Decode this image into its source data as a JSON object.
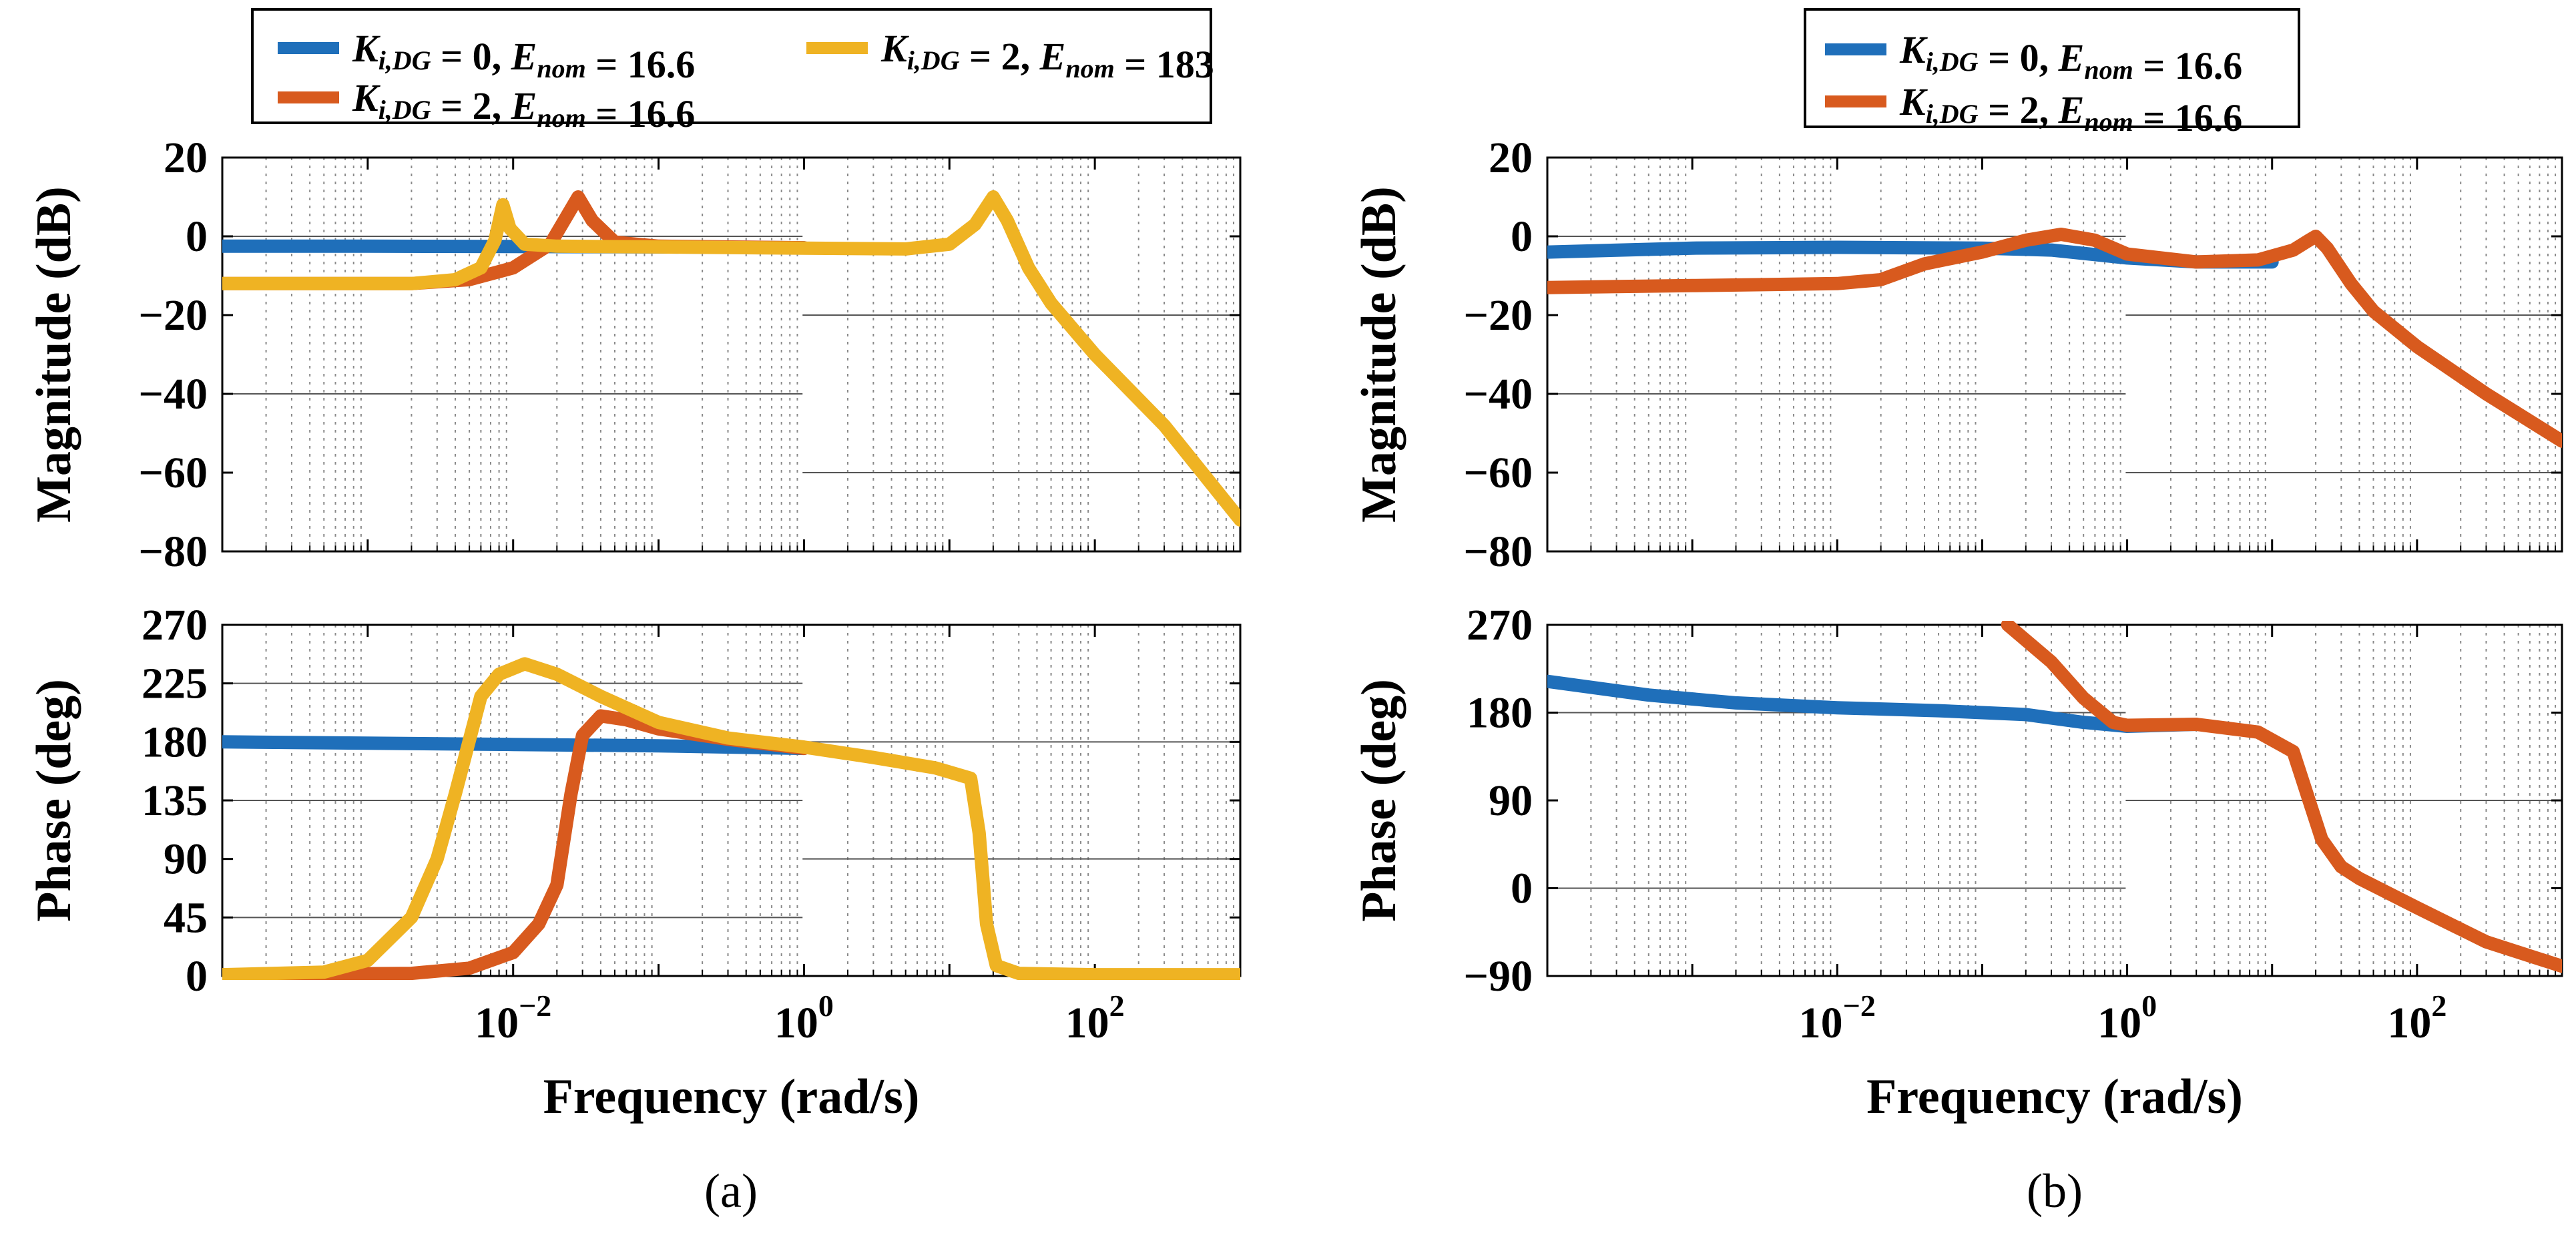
{
  "chart_data": [
    {
      "type": "line",
      "panel": "a",
      "panel_label": "(a)",
      "xscale": "log",
      "xlim": [
        0.0001,
        1000
      ],
      "xlabel": "Frequency (rad/s)",
      "xticks": [
        {
          "value": 0.01,
          "base": "10",
          "exp": "−2"
        },
        {
          "value": 1,
          "base": "10",
          "exp": "0"
        },
        {
          "value": 100,
          "base": "10",
          "exp": "2"
        }
      ],
      "legend": {
        "position": "top",
        "entries": [
          {
            "name": "K_i,DG = 0, E_nom = 16.6",
            "ki": "0",
            "enom": "16.6",
            "color": "#1f6fba"
          },
          {
            "name": "K_i,DG = 2, E_nom = 183",
            "ki": "2",
            "enom": "183",
            "color": "#efb323"
          },
          {
            "name": "K_i,DG = 2, E_nom = 16.6",
            "ki": "2",
            "enom": "16.6",
            "color": "#d85a1e"
          }
        ]
      },
      "magnitude": {
        "ylabel": "Magnitude (dB)",
        "ylim": [
          -80,
          20
        ],
        "yticks": [
          "20",
          "0",
          "−20",
          "−40",
          "−60",
          "−80"
        ],
        "series": [
          {
            "name": "K_i,DG = 0, E_nom = 16.6",
            "color": "#1f6fba",
            "points": [
              [
                0.0001,
                -2.5
              ],
              [
                0.001,
                -2.5
              ],
              [
                0.01,
                -2.6
              ],
              [
                0.1,
                -2.7
              ],
              [
                1,
                -2.9
              ]
            ]
          },
          {
            "name": "K_i,DG = 2, E_nom = 16.6",
            "color": "#d85a1e",
            "points": [
              [
                0.0001,
                -12
              ],
              [
                0.002,
                -12
              ],
              [
                0.005,
                -11
              ],
              [
                0.01,
                -8
              ],
              [
                0.018,
                -2
              ],
              [
                0.028,
                10
              ],
              [
                0.035,
                4
              ],
              [
                0.05,
                -1.5
              ],
              [
                0.1,
                -2.5
              ],
              [
                1,
                -2.9
              ]
            ]
          },
          {
            "name": "K_i,DG = 2, E_nom = 183",
            "color": "#efb323",
            "points": [
              [
                0.0001,
                -12
              ],
              [
                0.002,
                -12
              ],
              [
                0.004,
                -11
              ],
              [
                0.006,
                -8
              ],
              [
                0.0075,
                -1
              ],
              [
                0.0085,
                8
              ],
              [
                0.0095,
                2
              ],
              [
                0.012,
                -2
              ],
              [
                0.02,
                -2.5
              ],
              [
                0.1,
                -2.7
              ],
              [
                1,
                -3
              ],
              [
                5,
                -3.2
              ],
              [
                10,
                -2
              ],
              [
                15,
                3
              ],
              [
                20,
                10
              ],
              [
                25,
                4
              ],
              [
                35,
                -8
              ],
              [
                50,
                -17
              ],
              [
                100,
                -30
              ],
              [
                300,
                -48
              ],
              [
                1000,
                -72
              ]
            ]
          }
        ]
      },
      "phase": {
        "ylabel": "Phase (deg)",
        "ylim": [
          0,
          270
        ],
        "yticks": [
          "270",
          "225",
          "180",
          "135",
          "90",
          "45",
          "0"
        ],
        "series": [
          {
            "name": "K_i,DG = 0, E_nom = 16.6",
            "color": "#1f6fba",
            "points": [
              [
                0.0001,
                180
              ],
              [
                0.001,
                179
              ],
              [
                0.01,
                178
              ],
              [
                0.1,
                177
              ],
              [
                1,
                175
              ]
            ]
          },
          {
            "name": "K_i,DG = 2, E_nom = 16.6",
            "color": "#d85a1e",
            "points": [
              [
                0.0001,
                1
              ],
              [
                0.002,
                2
              ],
              [
                0.005,
                6
              ],
              [
                0.01,
                18
              ],
              [
                0.015,
                40
              ],
              [
                0.02,
                70
              ],
              [
                0.025,
                140
              ],
              [
                0.03,
                185
              ],
              [
                0.04,
                200
              ],
              [
                0.06,
                197
              ],
              [
                0.1,
                190
              ],
              [
                0.3,
                182
              ],
              [
                1,
                175
              ]
            ]
          },
          {
            "name": "K_i,DG = 2, E_nom = 183",
            "color": "#efb323",
            "points": [
              [
                0.0001,
                1
              ],
              [
                0.0005,
                3
              ],
              [
                0.001,
                12
              ],
              [
                0.002,
                45
              ],
              [
                0.003,
                90
              ],
              [
                0.004,
                140
              ],
              [
                0.006,
                215
              ],
              [
                0.008,
                232
              ],
              [
                0.012,
                240
              ],
              [
                0.02,
                232
              ],
              [
                0.04,
                215
              ],
              [
                0.1,
                195
              ],
              [
                0.3,
                183
              ],
              [
                1,
                176
              ],
              [
                3,
                168
              ],
              [
                8,
                160
              ],
              [
                14,
                152
              ],
              [
                16,
                110
              ],
              [
                18,
                40
              ],
              [
                21,
                8
              ],
              [
                30,
                2
              ],
              [
                100,
                1
              ],
              [
                1000,
                1
              ]
            ]
          }
        ]
      }
    },
    {
      "type": "line",
      "panel": "b",
      "panel_label": "(b)",
      "xscale": "log",
      "xlim": [
        0.0001,
        1000
      ],
      "xlabel": "Frequency (rad/s)",
      "xticks": [
        {
          "value": 0.01,
          "base": "10",
          "exp": "−2"
        },
        {
          "value": 1,
          "base": "10",
          "exp": "0"
        },
        {
          "value": 100,
          "base": "10",
          "exp": "2"
        }
      ],
      "legend": {
        "position": "top",
        "entries": [
          {
            "name": "K_i,DG = 0, E_nom = 16.6",
            "ki": "0",
            "enom": "16.6",
            "color": "#1f6fba"
          },
          {
            "name": "K_i,DG = 2, E_nom = 16.6",
            "ki": "2",
            "enom": "16.6",
            "color": "#d85a1e"
          }
        ]
      },
      "magnitude": {
        "ylabel": "Magnitude (dB)",
        "ylim": [
          -80,
          20
        ],
        "yticks": [
          "20",
          "0",
          "−20",
          "−40",
          "−60",
          "−80"
        ],
        "series": [
          {
            "name": "K_i,DG = 0, E_nom = 16.6",
            "color": "#1f6fba",
            "points": [
              [
                0.0001,
                -4
              ],
              [
                0.001,
                -3
              ],
              [
                0.01,
                -2.8
              ],
              [
                0.1,
                -3
              ],
              [
                0.3,
                -3.5
              ],
              [
                1,
                -5.5
              ],
              [
                3,
                -6.5
              ],
              [
                10,
                -6.5
              ]
            ]
          },
          {
            "name": "K_i,DG = 2, E_nom = 16.6",
            "color": "#d85a1e",
            "points": [
              [
                0.0001,
                -13
              ],
              [
                0.001,
                -12.5
              ],
              [
                0.01,
                -12
              ],
              [
                0.02,
                -11
              ],
              [
                0.04,
                -7
              ],
              [
                0.1,
                -4
              ],
              [
                0.2,
                -1
              ],
              [
                0.35,
                0.5
              ],
              [
                0.6,
                -1
              ],
              [
                1,
                -4.5
              ],
              [
                3,
                -6.5
              ],
              [
                8,
                -6
              ],
              [
                14,
                -3.5
              ],
              [
                18,
                -1
              ],
              [
                20,
                0
              ],
              [
                24,
                -3
              ],
              [
                35,
                -12
              ],
              [
                50,
                -19
              ],
              [
                100,
                -28
              ],
              [
                300,
                -40
              ],
              [
                1000,
                -52
              ]
            ]
          }
        ]
      },
      "phase": {
        "ylabel": "Phase (deg)",
        "ylim": [
          -90,
          270
        ],
        "yticks": [
          "270",
          "180",
          "90",
          "0",
          "−90"
        ],
        "series": [
          {
            "name": "K_i,DG = 0, E_nom = 16.6",
            "color": "#1f6fba",
            "points": [
              [
                0.0001,
                212
              ],
              [
                0.0005,
                198
              ],
              [
                0.002,
                190
              ],
              [
                0.01,
                185
              ],
              [
                0.05,
                182
              ],
              [
                0.2,
                178
              ],
              [
                0.5,
                170
              ],
              [
                1,
                166
              ],
              [
                3,
                168
              ]
            ]
          },
          {
            "name": "K_i,DG = 2, E_nom = 16.6",
            "color": "#d85a1e",
            "points": [
              [
                0.15,
                270
              ],
              [
                0.3,
                232
              ],
              [
                0.5,
                195
              ],
              [
                0.8,
                170
              ],
              [
                1,
                167
              ],
              [
                3,
                168
              ],
              [
                8,
                160
              ],
              [
                14,
                140
              ],
              [
                18,
                90
              ],
              [
                22,
                50
              ],
              [
                30,
                22
              ],
              [
                40,
                10
              ],
              [
                100,
                -20
              ],
              [
                300,
                -55
              ],
              [
                1000,
                -80
              ]
            ]
          }
        ]
      }
    }
  ]
}
